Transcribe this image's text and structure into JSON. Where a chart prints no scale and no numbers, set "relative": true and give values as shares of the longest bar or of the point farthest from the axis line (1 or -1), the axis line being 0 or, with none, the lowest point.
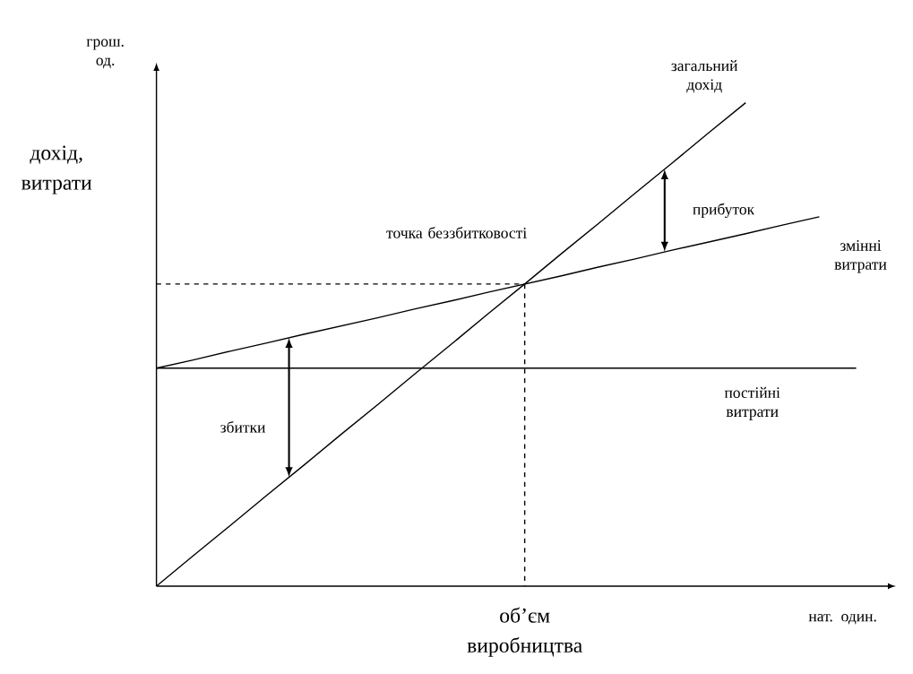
{
  "chart_data": {
    "type": "line",
    "relative": true,
    "xlabel": "об’єм виробництва",
    "ylabel": "дохід, витрати",
    "marker": "none",
    "legend": false,
    "categories": [
      null,
      null,
      null,
      null,
      null,
      null,
      null,
      null,
      null,
      null,
      null,
      null,
      null,
      null,
      null,
      null,
      null,
      null,
      null,
      null
    ],
    "annotations": [
      "грош. од.",
      "нат. один.",
      "точка беззбитковості",
      "прибуток",
      "збитки"
    ],
    "series": [
      {
        "name": "загальний дохід",
        "color": "#000000",
        "values": [
          0,
          0.063,
          0.125,
          0.188,
          0.25,
          0.313,
          0.375,
          0.438,
          0.5,
          0.563,
          0.625,
          0.688,
          0.75,
          0.813,
          0.875,
          0.938,
          1,
          null,
          null,
          null
        ]
      },
      {
        "name": "змінні витрати",
        "color": "#000000",
        "values": [
          0.451,
          0.468,
          0.486,
          0.503,
          0.521,
          0.538,
          0.555,
          0.573,
          0.59,
          0.608,
          0.625,
          0.642,
          0.66,
          0.677,
          0.695,
          0.712,
          0.729,
          0.747,
          0.764,
          null
        ]
      },
      {
        "name": "постійні витрати",
        "color": "#000000",
        "values": [
          0.451,
          0.451,
          0.451,
          0.451,
          0.451,
          0.451,
          0.451,
          0.451,
          0.451,
          0.451,
          0.451,
          0.451,
          0.451,
          0.451,
          0.451,
          0.451,
          0.451,
          0.451,
          0.451,
          0.451
        ]
      },
      {
        "color": "#000000",
        "line_style": "dashed",
        "values": [
          0.625,
          0.625,
          0.625,
          0.625,
          0.625,
          0.625,
          0.625,
          0.625,
          0.625,
          0.625,
          0.625,
          null,
          null,
          null,
          null,
          null,
          null,
          null,
          null,
          null
        ]
      }
    ]
  }
}
